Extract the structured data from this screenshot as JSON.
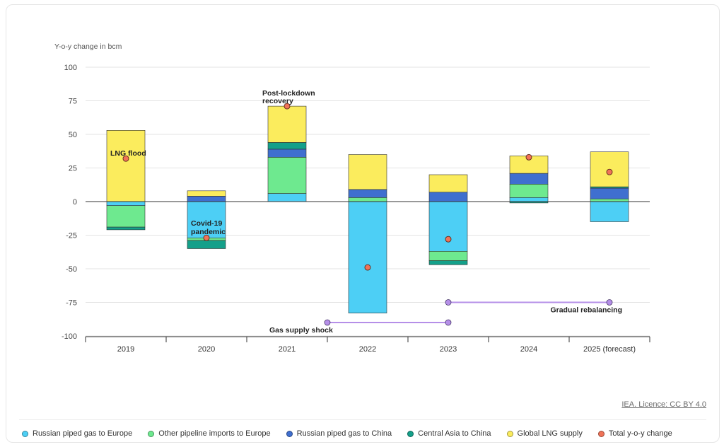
{
  "chart_data": {
    "type": "bar",
    "stacked": true,
    "ylabel": "Y-o-y change in bcm",
    "ylim": [
      -100,
      100
    ],
    "yticks": [
      100,
      75,
      50,
      25,
      0,
      -25,
      -50,
      -75,
      -100
    ],
    "categories": [
      "2019",
      "2020",
      "2021",
      "2022",
      "2023",
      "2024",
      "2025 (forecast)"
    ],
    "series": [
      {
        "key": "russia_eu",
        "name": "Russian piped gas to Europe",
        "color": "#4dcff5",
        "values": [
          -3,
          -27,
          6,
          -83,
          -37,
          3,
          -15
        ]
      },
      {
        "key": "other_eu",
        "name": "Other pipeline imports to Europe",
        "color": "#6ee98f",
        "values": [
          -16,
          -2,
          27,
          3,
          -7,
          10,
          2
        ]
      },
      {
        "key": "russia_cn",
        "name": "Russian piped gas to China",
        "color": "#3f6fcf",
        "values": [
          0,
          4,
          6,
          6,
          7,
          8,
          8
        ]
      },
      {
        "key": "central_asia",
        "name": "Central Asia to China",
        "color": "#14a08a",
        "values": [
          -2,
          -6,
          5,
          0,
          -3,
          -1,
          1
        ]
      },
      {
        "key": "lng",
        "name": "Global LNG supply",
        "color": "#fbec5d",
        "values": [
          53,
          4,
          27,
          26,
          13,
          13,
          26
        ]
      }
    ],
    "total": {
      "name": "Total y-o-y change",
      "color": "#f07358",
      "values": [
        32,
        -27,
        71,
        -49,
        -28,
        33,
        22
      ]
    },
    "annotations": [
      {
        "text": "LNG flood"
      },
      {
        "text": "Covid-19 pandemic"
      },
      {
        "text": "Post-lockdown recovery"
      },
      {
        "text": "Gas supply shock"
      },
      {
        "text": "Gradual rebalancing"
      }
    ],
    "periods": [
      {
        "label": "Gas supply shock",
        "from": "2021",
        "to": "2023",
        "y": -90
      },
      {
        "label": "Gradual rebalancing",
        "from": "2023",
        "to": "2025 (forecast)",
        "y": -75
      }
    ]
  },
  "source": {
    "license": "IEA. Licence: CC BY 4.0"
  },
  "legend": [
    {
      "label": "Russian piped gas to Europe",
      "color": "#4dcff5"
    },
    {
      "label": "Other pipeline imports to Europe",
      "color": "#6ee98f"
    },
    {
      "label": "Russian piped gas to China",
      "color": "#3f6fcf"
    },
    {
      "label": "Central Asia to China",
      "color": "#14a08a"
    },
    {
      "label": "Global LNG supply",
      "color": "#fbec5d"
    },
    {
      "label": "Total y-o-y change",
      "color": "#f07358"
    }
  ]
}
